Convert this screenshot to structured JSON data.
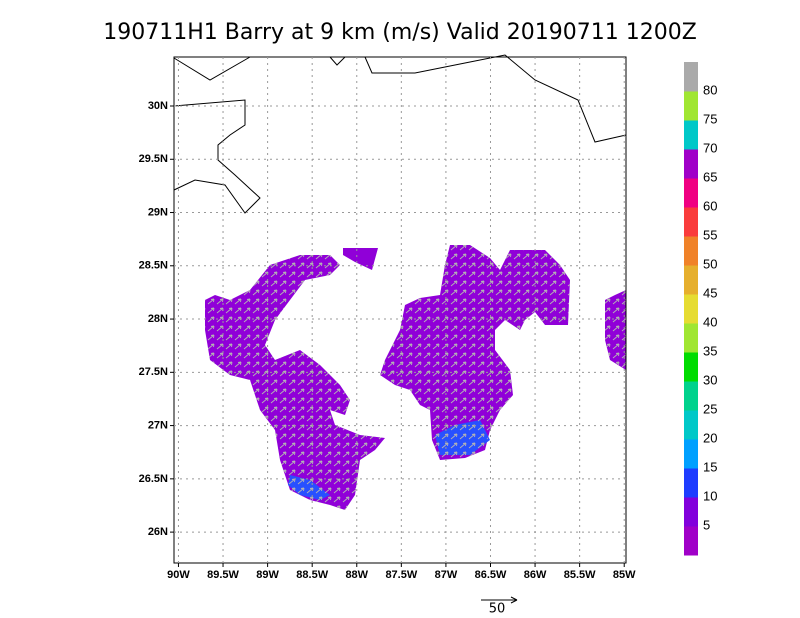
{
  "title": "190711H1 Barry at 9 km (m/s) Valid 20190711 1200Z",
  "map": {
    "xlim": [
      -90.05,
      -84.98
    ],
    "ylim": [
      25.71,
      30.46
    ],
    "xticks": [
      {
        "value": -90,
        "label": "90W"
      },
      {
        "value": -89.5,
        "label": "89.5W"
      },
      {
        "value": -89,
        "label": "89W"
      },
      {
        "value": -88.5,
        "label": "88.5W"
      },
      {
        "value": -88,
        "label": "88W"
      },
      {
        "value": -87.5,
        "label": "87.5W"
      },
      {
        "value": -87,
        "label": "87W"
      },
      {
        "value": -86.5,
        "label": "86.5W"
      },
      {
        "value": -86,
        "label": "86W"
      },
      {
        "value": -85.5,
        "label": "85.5W"
      },
      {
        "value": -85,
        "label": "85W"
      }
    ],
    "yticks": [
      {
        "value": 26,
        "label": "26N"
      },
      {
        "value": 26.5,
        "label": "26.5N"
      },
      {
        "value": 27,
        "label": "27N"
      },
      {
        "value": 27.5,
        "label": "27.5N"
      },
      {
        "value": 28,
        "label": "28N"
      },
      {
        "value": 28.5,
        "label": "28.5N"
      },
      {
        "value": 29,
        "label": "29N"
      },
      {
        "value": 29.5,
        "label": "29.5N"
      },
      {
        "value": 30,
        "label": "30N"
      }
    ],
    "grid": true
  },
  "colorbar": {
    "colors": [
      "#a000c8",
      "#8200dc",
      "#1e3cff",
      "#00a0ff",
      "#00c8c8",
      "#00d28c",
      "#00dc00",
      "#a0e632",
      "#e6dc32",
      "#e6af2d",
      "#f08228",
      "#fa3c3c",
      "#f00082",
      "#a000c8",
      "#00c8c8",
      "#a0e632",
      "#aaaaaa"
    ],
    "ticks": [
      5,
      10,
      15,
      20,
      25,
      30,
      35,
      40,
      45,
      50,
      55,
      60,
      65,
      70,
      75,
      80
    ]
  },
  "reference_vector": {
    "label": "50"
  }
}
